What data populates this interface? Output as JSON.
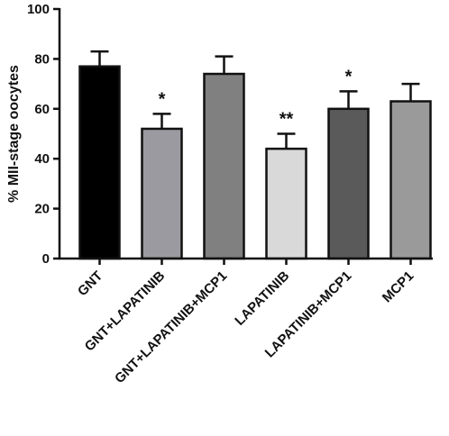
{
  "chart_data": {
    "type": "bar",
    "title": "",
    "xlabel": "",
    "ylabel": "% MII-stage oocytes",
    "ylim": [
      0,
      100
    ],
    "yticks": [
      "0",
      "20",
      "40",
      "60",
      "80",
      "100"
    ],
    "categories": [
      "GNT",
      "GNT+LAPATINIB",
      "GNT+LAPATINIB+MCP1",
      "LAPATINIB",
      "LAPATINIB+MCP1",
      "MCP1"
    ],
    "values": [
      77,
      52,
      74,
      44,
      60,
      63
    ],
    "errors": [
      6,
      6,
      7,
      6,
      7,
      7
    ],
    "significance": [
      "",
      "*",
      "",
      "**",
      "*",
      ""
    ],
    "bar_colors": [
      "#000000",
      "#9a9aa0",
      "#808080",
      "#d9d9d9",
      "#5a5a5a",
      "#9a9a9a"
    ],
    "grid": false,
    "legend": "none"
  }
}
